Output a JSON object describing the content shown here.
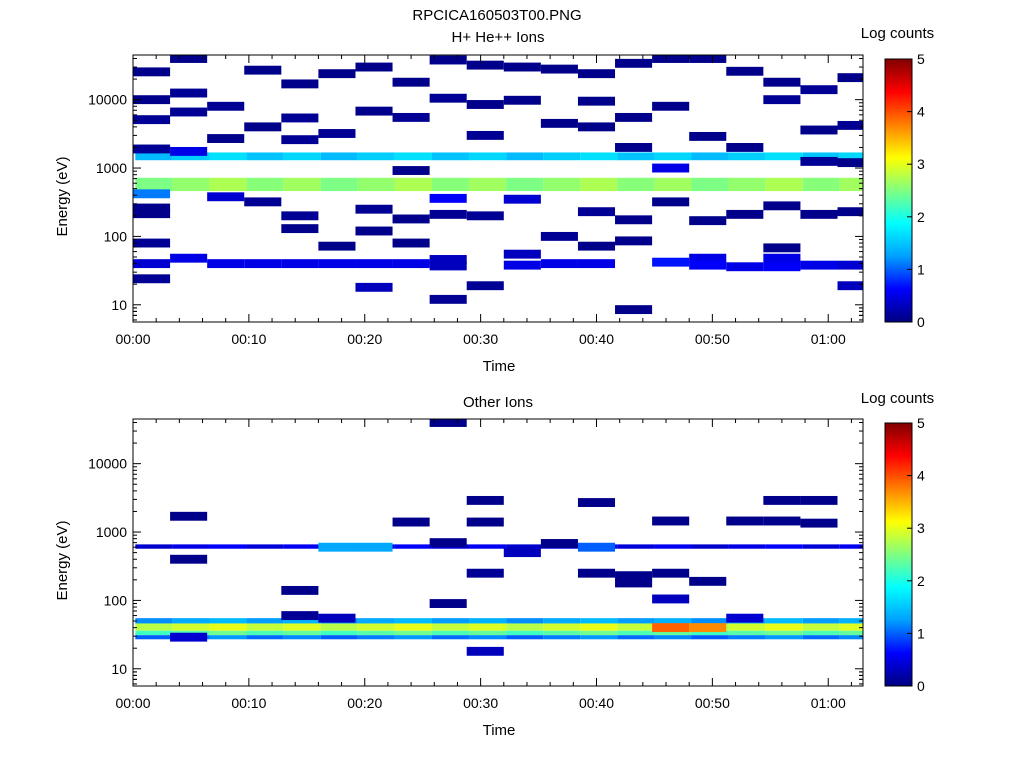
{
  "file_title": "RPCICA160503T00.PNG",
  "colorbar_scale": [
    "#000080",
    "#0000ff",
    "#00a0ff",
    "#00ffff",
    "#80ff80",
    "#ffff00",
    "#ff8000",
    "#ff0000",
    "#800000"
  ],
  "chart_data": [
    {
      "type": "heatmap",
      "title": "H+ He++ Ions",
      "xlabel": "Time",
      "ylabel": "Energy (eV)",
      "x_scale": "time",
      "x_range_min": [
        0,
        63
      ],
      "y_scale": "log",
      "y_range": [
        5.6,
        45000
      ],
      "x_ticks_min": [
        0,
        10,
        20,
        30,
        40,
        50,
        60
      ],
      "x_tick_labels": [
        "00:00",
        "00:10",
        "00:20",
        "00:30",
        "00:40",
        "00:50",
        "01:00"
      ],
      "y_ticks": [
        10,
        100,
        1000,
        10000
      ],
      "y_tick_labels": [
        "10",
        "100",
        "1000",
        "10000"
      ],
      "colorbar": {
        "label": "Log counts",
        "range": [
          0,
          5
        ],
        "ticks": [
          "0",
          "1",
          "2",
          "3",
          "4",
          "5"
        ]
      },
      "time_bin_min": 3.2,
      "energy_bins_ev": [
        5.8,
        6.7,
        7.7,
        8.9,
        10.2,
        11.7,
        13.5,
        15.5,
        17.8,
        20.5,
        23.6,
        27.1,
        31.2,
        35.9,
        41.3,
        47.5,
        54.6,
        62.8,
        72.3,
        83.1,
        95.6,
        110,
        126.5,
        145.5,
        167.3,
        192.4,
        221.3,
        254.5,
        292.7,
        336.6,
        387.1,
        445.2,
        512,
        588.7,
        677.1,
        778.6,
        895.4,
        1029.7,
        1184.2,
        1361.8,
        1566,
        1801,
        2071,
        2382,
        2739,
        3150,
        3622,
        4166,
        4790,
        5509,
        6335,
        7285,
        8378,
        9635,
        11080,
        12742,
        14653,
        16851,
        19379,
        22286,
        25629,
        29473,
        33894,
        38978,
        44825
      ],
      "background_bands": [
        {
          "energy_range_ev": [
            1301,
            1690
          ],
          "log_counts": 1.55
        },
        {
          "energy_range_ev": [
            460,
            720
          ],
          "log_counts": 2.6
        }
      ],
      "cells": [
        {
          "t": 1.6,
          "e": 25500,
          "v": 0.05
        },
        {
          "t": 1.6,
          "e": 10000,
          "v": 0.05
        },
        {
          "t": 1.6,
          "e": 5100,
          "v": 0.1
        },
        {
          "t": 1.6,
          "e": 1900,
          "v": 0.1
        },
        {
          "t": 1.6,
          "e": 420,
          "v": 1.1
        },
        {
          "t": 1.6,
          "e": 260,
          "v": 0.05
        },
        {
          "t": 1.6,
          "e": 215,
          "v": 0.05
        },
        {
          "t": 1.6,
          "e": 80,
          "v": 0.1
        },
        {
          "t": 1.6,
          "e": 40,
          "v": 0.4
        },
        {
          "t": 1.6,
          "e": 24,
          "v": 0.1
        },
        {
          "t": 4.8,
          "e": 40000,
          "v": 0.05
        },
        {
          "t": 4.8,
          "e": 12500,
          "v": 0.1
        },
        {
          "t": 4.8,
          "e": 6600,
          "v": 0.1
        },
        {
          "t": 4.8,
          "e": 1750,
          "v": 0.5
        },
        {
          "t": 4.8,
          "e": 48,
          "v": 0.5
        },
        {
          "t": 8.0,
          "e": 8000,
          "v": 0.1
        },
        {
          "t": 8.0,
          "e": 2700,
          "v": 0.05
        },
        {
          "t": 8.0,
          "e": 380,
          "v": 0.4
        },
        {
          "t": 8.0,
          "e": 40,
          "v": 0.5
        },
        {
          "t": 11.2,
          "e": 27000,
          "v": 0.05
        },
        {
          "t": 11.2,
          "e": 4000,
          "v": 0.05
        },
        {
          "t": 11.2,
          "e": 320,
          "v": 0.1
        },
        {
          "t": 11.2,
          "e": 40,
          "v": 0.5
        },
        {
          "t": 14.4,
          "e": 17000,
          "v": 0.05
        },
        {
          "t": 14.4,
          "e": 5400,
          "v": 0.1
        },
        {
          "t": 14.4,
          "e": 2600,
          "v": 0.1
        },
        {
          "t": 14.4,
          "e": 200,
          "v": 0.1
        },
        {
          "t": 14.4,
          "e": 130,
          "v": 0.05
        },
        {
          "t": 14.4,
          "e": 40,
          "v": 0.5
        },
        {
          "t": 17.6,
          "e": 24000,
          "v": 0.05
        },
        {
          "t": 17.6,
          "e": 3200,
          "v": 0.1
        },
        {
          "t": 17.6,
          "e": 72,
          "v": 0.05
        },
        {
          "t": 17.6,
          "e": 40,
          "v": 0.5
        },
        {
          "t": 20.8,
          "e": 30000,
          "v": 0.05
        },
        {
          "t": 20.8,
          "e": 6800,
          "v": 0.05
        },
        {
          "t": 20.8,
          "e": 250,
          "v": 0.1
        },
        {
          "t": 20.8,
          "e": 120,
          "v": 0.05
        },
        {
          "t": 20.8,
          "e": 40,
          "v": 0.5
        },
        {
          "t": 20.8,
          "e": 18,
          "v": 0.3
        },
        {
          "t": 24.0,
          "e": 18000,
          "v": 0.05
        },
        {
          "t": 24.0,
          "e": 5500,
          "v": 0.1
        },
        {
          "t": 24.0,
          "e": 920,
          "v": 0.05
        },
        {
          "t": 24.0,
          "e": 180,
          "v": 0.05
        },
        {
          "t": 24.0,
          "e": 80,
          "v": 0.05
        },
        {
          "t": 24.0,
          "e": 40,
          "v": 0.5
        },
        {
          "t": 27.2,
          "e": 38000,
          "v": 0.05
        },
        {
          "t": 27.2,
          "e": 10500,
          "v": 0.1
        },
        {
          "t": 27.2,
          "e": 360,
          "v": 0.6
        },
        {
          "t": 27.2,
          "e": 210,
          "v": 0.1
        },
        {
          "t": 27.2,
          "e": 46,
          "v": 0.3
        },
        {
          "t": 27.2,
          "e": 37,
          "v": 0.3
        },
        {
          "t": 27.2,
          "e": 12,
          "v": 0.1
        },
        {
          "t": 30.4,
          "e": 32000,
          "v": 0.05
        },
        {
          "t": 30.4,
          "e": 8500,
          "v": 0.05
        },
        {
          "t": 30.4,
          "e": 3000,
          "v": 0.1
        },
        {
          "t": 30.4,
          "e": 200,
          "v": 0.1
        },
        {
          "t": 30.4,
          "e": 19,
          "v": 0.1
        },
        {
          "t": 33.6,
          "e": 30000,
          "v": 0.05
        },
        {
          "t": 33.6,
          "e": 9800,
          "v": 0.05
        },
        {
          "t": 33.6,
          "e": 350,
          "v": 0.4
        },
        {
          "t": 33.6,
          "e": 55,
          "v": 0.3
        },
        {
          "t": 33.6,
          "e": 38,
          "v": 0.5
        },
        {
          "t": 36.8,
          "e": 28000,
          "v": 0.05
        },
        {
          "t": 36.8,
          "e": 4500,
          "v": 0.05
        },
        {
          "t": 36.8,
          "e": 100,
          "v": 0.1
        },
        {
          "t": 36.8,
          "e": 40,
          "v": 0.5
        },
        {
          "t": 40.0,
          "e": 24000,
          "v": 0.05
        },
        {
          "t": 40.0,
          "e": 9500,
          "v": 0.05
        },
        {
          "t": 40.0,
          "e": 4000,
          "v": 0.05
        },
        {
          "t": 40.0,
          "e": 230,
          "v": 0.1
        },
        {
          "t": 40.0,
          "e": 72,
          "v": 0.05
        },
        {
          "t": 40.0,
          "e": 40,
          "v": 0.5
        },
        {
          "t": 43.2,
          "e": 34000,
          "v": 0.05
        },
        {
          "t": 43.2,
          "e": 5500,
          "v": 0.05
        },
        {
          "t": 43.2,
          "e": 2000,
          "v": 0.05
        },
        {
          "t": 43.2,
          "e": 175,
          "v": 0.05
        },
        {
          "t": 43.2,
          "e": 86,
          "v": 0.05
        },
        {
          "t": 43.2,
          "e": 8.5,
          "v": 0.05
        },
        {
          "t": 46.4,
          "e": 40000,
          "v": 0.05
        },
        {
          "t": 46.4,
          "e": 8000,
          "v": 0.05
        },
        {
          "t": 46.4,
          "e": 1000,
          "v": 0.5
        },
        {
          "t": 46.4,
          "e": 320,
          "v": 0.05
        },
        {
          "t": 46.4,
          "e": 42,
          "v": 0.7
        },
        {
          "t": 49.6,
          "e": 40000,
          "v": 0.05
        },
        {
          "t": 49.6,
          "e": 2900,
          "v": 0.05
        },
        {
          "t": 49.6,
          "e": 170,
          "v": 0.05
        },
        {
          "t": 49.6,
          "e": 48,
          "v": 0.5
        },
        {
          "t": 49.6,
          "e": 38,
          "v": 0.6
        },
        {
          "t": 52.8,
          "e": 26000,
          "v": 0.05
        },
        {
          "t": 52.8,
          "e": 2000,
          "v": 0.05
        },
        {
          "t": 52.8,
          "e": 210,
          "v": 0.05
        },
        {
          "t": 52.8,
          "e": 36,
          "v": 0.5
        },
        {
          "t": 56.0,
          "e": 18000,
          "v": 0.05
        },
        {
          "t": 56.0,
          "e": 10000,
          "v": 0.1
        },
        {
          "t": 56.0,
          "e": 280,
          "v": 0.05
        },
        {
          "t": 56.0,
          "e": 68,
          "v": 0.05
        },
        {
          "t": 56.0,
          "e": 48,
          "v": 0.5
        },
        {
          "t": 56.0,
          "e": 36,
          "v": 0.6
        },
        {
          "t": 59.2,
          "e": 14000,
          "v": 0.1
        },
        {
          "t": 59.2,
          "e": 3600,
          "v": 0.05
        },
        {
          "t": 59.2,
          "e": 1250,
          "v": 0.1
        },
        {
          "t": 59.2,
          "e": 210,
          "v": 0.05
        },
        {
          "t": 59.2,
          "e": 38,
          "v": 0.5
        },
        {
          "t": 62.4,
          "e": 21000,
          "v": 0.05
        },
        {
          "t": 62.4,
          "e": 4200,
          "v": 0.1
        },
        {
          "t": 62.4,
          "e": 1200,
          "v": 0.05
        },
        {
          "t": 62.4,
          "e": 230,
          "v": 0.05
        },
        {
          "t": 62.4,
          "e": 38,
          "v": 0.4
        },
        {
          "t": 62.4,
          "e": 19,
          "v": 0.3
        }
      ]
    },
    {
      "type": "heatmap",
      "title": "Other Ions",
      "xlabel": "Time",
      "ylabel": "Energy (eV)",
      "x_scale": "time",
      "x_range_min": [
        0,
        63
      ],
      "y_scale": "log",
      "y_range": [
        5.6,
        45000
      ],
      "x_ticks_min": [
        0,
        10,
        20,
        30,
        40,
        50,
        60
      ],
      "x_tick_labels": [
        "00:00",
        "00:10",
        "00:20",
        "00:30",
        "00:40",
        "00:50",
        "01:00"
      ],
      "y_ticks": [
        10,
        100,
        1000,
        10000
      ],
      "y_tick_labels": [
        "10",
        "100",
        "1000",
        "10000"
      ],
      "colorbar": {
        "label": "Log counts",
        "range": [
          0,
          5
        ],
        "ticks": [
          "0",
          "1",
          "2",
          "3",
          "4",
          "5"
        ]
      },
      "time_bin_min": 3.2,
      "background_bands": [
        {
          "energy_range_ev": [
            46,
            55
          ],
          "log_counts": 1.3
        },
        {
          "energy_range_ev": [
            36,
            46
          ],
          "log_counts": 2.9
        },
        {
          "energy_range_ev": [
            31,
            36
          ],
          "log_counts": 2.3
        },
        {
          "energy_range_ev": [
            27,
            31
          ],
          "log_counts": 1.1
        },
        {
          "energy_range_ev": [
            570,
            660
          ],
          "log_counts": 0.5
        }
      ],
      "cells": [
        {
          "t": 4.8,
          "e": 1700,
          "v": 0.05
        },
        {
          "t": 4.8,
          "e": 400,
          "v": 0.05
        },
        {
          "t": 4.8,
          "e": 29,
          "v": 0.4
        },
        {
          "t": 14.4,
          "e": 140,
          "v": 0.05
        },
        {
          "t": 14.4,
          "e": 60,
          "v": 0.1
        },
        {
          "t": 17.6,
          "e": 600,
          "v": 1.3
        },
        {
          "t": 17.6,
          "e": 55,
          "v": 0.3
        },
        {
          "t": 20.8,
          "e": 600,
          "v": 1.3
        },
        {
          "t": 24.0,
          "e": 1400,
          "v": 0.05
        },
        {
          "t": 27.2,
          "e": 40000,
          "v": 0.05
        },
        {
          "t": 27.2,
          "e": 700,
          "v": 0.05
        },
        {
          "t": 27.2,
          "e": 90,
          "v": 0.05
        },
        {
          "t": 30.4,
          "e": 2900,
          "v": 0.05
        },
        {
          "t": 30.4,
          "e": 1400,
          "v": 0.05
        },
        {
          "t": 30.4,
          "e": 250,
          "v": 0.1
        },
        {
          "t": 30.4,
          "e": 18,
          "v": 0.3
        },
        {
          "t": 33.6,
          "e": 500,
          "v": 0.3
        },
        {
          "t": 36.8,
          "e": 680,
          "v": 0.05
        },
        {
          "t": 40.0,
          "e": 2700,
          "v": 0.05
        },
        {
          "t": 40.0,
          "e": 600,
          "v": 1.0
        },
        {
          "t": 40.0,
          "e": 250,
          "v": 0.05
        },
        {
          "t": 43.2,
          "e": 230,
          "v": 0.05
        },
        {
          "t": 43.2,
          "e": 180,
          "v": 0.05
        },
        {
          "t": 46.4,
          "e": 1450,
          "v": 0.05
        },
        {
          "t": 46.4,
          "e": 250,
          "v": 0.05
        },
        {
          "t": 46.4,
          "e": 105,
          "v": 0.3
        },
        {
          "t": 46.4,
          "e": 40,
          "v": 3.9
        },
        {
          "t": 49.6,
          "e": 190,
          "v": 0.05
        },
        {
          "t": 49.6,
          "e": 40,
          "v": 3.7
        },
        {
          "t": 52.8,
          "e": 1450,
          "v": 0.05
        },
        {
          "t": 52.8,
          "e": 55,
          "v": 0.4
        },
        {
          "t": 56.0,
          "e": 2900,
          "v": 0.05
        },
        {
          "t": 56.0,
          "e": 1450,
          "v": 0.05
        },
        {
          "t": 59.2,
          "e": 2900,
          "v": 0.05
        },
        {
          "t": 59.2,
          "e": 1350,
          "v": 0.05
        }
      ]
    }
  ]
}
